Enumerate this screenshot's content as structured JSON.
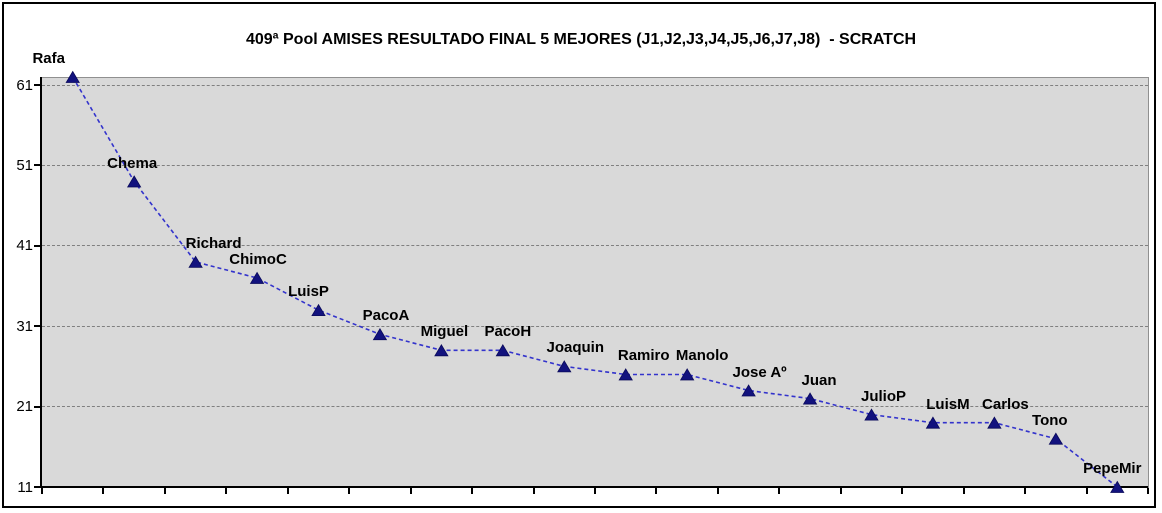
{
  "chart_data": {
    "type": "line",
    "title": "409ª Pool AMISES RESULTADO FINAL 5 MEJORES (J1,J2,J3,J4,J5,J6,J7,J8)  - SCRATCH",
    "categories": [
      "Rafa",
      "Chema",
      "Richard",
      "ChimoC",
      "LuisP",
      "PacoA",
      "Miguel",
      "PacoH",
      "Joaquin",
      "Ramiro",
      "Manolo",
      "Jose Aº",
      "Juan",
      "JulioP",
      "LuisM",
      "Carlos",
      "Tono",
      "PepeMir"
    ],
    "values": [
      62,
      49,
      39,
      37,
      33,
      30,
      28,
      28,
      26,
      25,
      25,
      23,
      22,
      20,
      19,
      19,
      17,
      11
    ],
    "point_labels": "category names shown above each marker",
    "xlabel": "",
    "ylabel": "",
    "yticks": [
      61,
      51,
      41,
      31,
      21,
      11
    ],
    "ylim": [
      11,
      62
    ],
    "grid": "horizontal dashed major gridlines",
    "legend": "none",
    "line_style": "dashed",
    "marker": "triangle-up",
    "label_dx": [
      -24,
      -2,
      18,
      1,
      -10,
      6,
      3,
      5,
      11,
      18,
      15,
      11,
      9,
      12,
      15,
      11,
      -6,
      -5
    ],
    "colors": {
      "line": "#3333cc",
      "marker": "#12127e",
      "marker_edge": "#0a0a5a",
      "plot_bg": "#d9d9d9",
      "plot_border": "#909090",
      "gridline": "#808080",
      "axis": "#000000",
      "text": "#000000",
      "background": "#ffffff",
      "chart_border": "#000000"
    }
  }
}
